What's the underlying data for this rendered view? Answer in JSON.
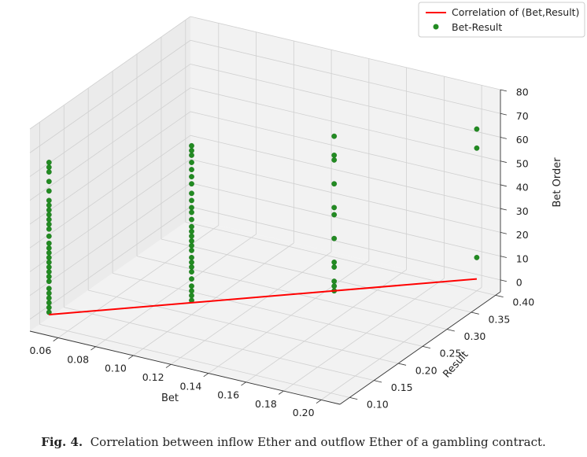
{
  "chart_data": {
    "type": "scatter",
    "projection": "3d",
    "title": "",
    "xlabel": "Bet",
    "ylabel": "Result",
    "zlabel": "Bet Order",
    "xlim": [
      0.045,
      0.21
    ],
    "ylim": [
      0.08,
      0.41
    ],
    "zlim": [
      -5,
      80
    ],
    "xticks": [
      "0.06",
      "0.08",
      "0.10",
      "0.12",
      "0.14",
      "0.16",
      "0.18",
      "0.20"
    ],
    "yticks": [
      "0.10",
      "0.15",
      "0.20",
      "0.25",
      "0.30",
      "0.35",
      "0.40"
    ],
    "zticks": [
      "0",
      "10",
      "20",
      "30",
      "40",
      "50",
      "60",
      "70",
      "80"
    ],
    "grid": true,
    "legend_position": "top-right",
    "series": [
      {
        "name": "Correlation of (Bet,Result)",
        "kind": "line",
        "color": "#ff0000",
        "x": [
          0.05,
          0.2
        ],
        "y": [
          0.1,
          0.4
        ],
        "z": [
          0,
          0
        ]
      },
      {
        "name": "Bet-Result",
        "kind": "scatter",
        "color": "#228b22",
        "points": [
          {
            "x": 0.05,
            "y": 0.1,
            "z": [
              1,
              3,
              5,
              7,
              9,
              11,
              14,
              16,
              18,
              20,
              22,
              24,
              26,
              28,
              30,
              33,
              36,
              38,
              40,
              42,
              44,
              46,
              48,
              52,
              56,
              60,
              62,
              64
            ]
          },
          {
            "x": 0.1,
            "y": 0.2,
            "z": [
              1,
              3,
              5,
              7,
              10,
              13,
              15,
              17,
              19,
              22,
              24,
              26,
              28,
              30,
              32,
              35,
              38,
              40,
              43,
              46,
              50,
              53,
              56,
              59,
              62,
              64,
              66
            ]
          },
          {
            "x": 0.15,
            "y": 0.3,
            "z": [
              0,
              2,
              4,
              10,
              12,
              22,
              32,
              35,
              45,
              55,
              57,
              65
            ]
          },
          {
            "x": 0.2,
            "y": 0.4,
            "z": [
              9,
              55,
              63
            ]
          }
        ]
      }
    ]
  },
  "caption": {
    "label": "Fig. 4.",
    "text": "Correlation between inflow Ether and outflow Ether of a gambling contract."
  }
}
